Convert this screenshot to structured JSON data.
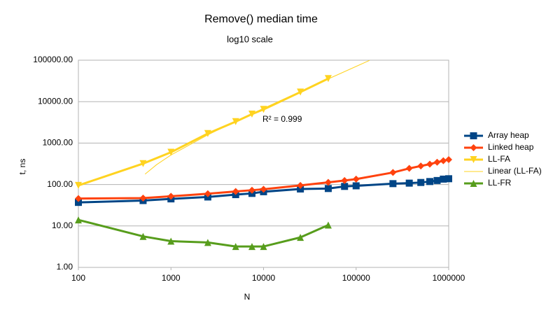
{
  "chart_data": {
    "type": "line",
    "title": "Remove() median time",
    "subtitle": "log10 scale",
    "x_label": "N",
    "y_label": "t, ns",
    "xscale": "log",
    "yscale": "log",
    "grid": true,
    "legend": "right",
    "xlim": [
      100,
      1000000
    ],
    "xticks": [
      100,
      1000,
      10000,
      100000,
      1000000
    ],
    "ylim": [
      1,
      100000
    ],
    "yticks": [
      {
        "value": 1,
        "label": "1.00"
      },
      {
        "value": 10,
        "label": "10.00"
      },
      {
        "value": 100,
        "label": "100.00"
      },
      {
        "value": 1000,
        "label": "1000.00"
      },
      {
        "value": 10000,
        "label": "10000.00"
      },
      {
        "value": 100000,
        "label": "100000.00"
      }
    ],
    "annotation": "R² = 0.999",
    "series": [
      {
        "name": "Array heap",
        "color": "#004586",
        "marker": "square",
        "width": 3,
        "x": [
          100,
          500,
          1000,
          2500,
          5000,
          7500,
          10000,
          25000,
          50000,
          75000,
          100000,
          250000,
          375000,
          500000,
          625000,
          750000,
          875000,
          1000000
        ],
        "values": [
          37,
          41,
          45,
          50,
          57,
          61,
          67,
          78,
          80,
          90,
          93,
          105,
          108,
          112,
          118,
          125,
          135,
          138
        ]
      },
      {
        "name": "Linked heap",
        "color": "#ff420e",
        "marker": "diamond",
        "width": 3,
        "x": [
          100,
          500,
          1000,
          2500,
          5000,
          7500,
          10000,
          25000,
          50000,
          75000,
          100000,
          250000,
          375000,
          500000,
          625000,
          750000,
          875000,
          1000000
        ],
        "values": [
          46,
          47,
          52,
          60,
          68,
          73,
          77,
          95,
          113,
          125,
          135,
          195,
          245,
          280,
          310,
          345,
          375,
          400
        ]
      },
      {
        "name": "LL-FA",
        "color": "#ffd320",
        "marker": "triangle-down",
        "width": 3,
        "x": [
          100,
          500,
          1000,
          2500,
          5000,
          7500,
          10000,
          25000,
          50000
        ],
        "values": [
          95,
          320,
          600,
          1700,
          3300,
          5000,
          6500,
          17000,
          36000
        ]
      },
      {
        "name": "Linear (LL-FA)",
        "color": "#ffd320",
        "marker": "none",
        "width": 1,
        "x": [
          525,
          700,
          1000,
          2500,
          5000,
          10000,
          25000,
          50000,
          100000,
          140000
        ],
        "values": [
          178,
          302,
          515,
          1580,
          3355,
          6905,
          17555,
          35305,
          70805,
          99205
        ]
      },
      {
        "name": "LL-FR",
        "color": "#579d1c",
        "marker": "triangle-up",
        "width": 3,
        "x": [
          100,
          500,
          1000,
          2500,
          5000,
          7500,
          10000,
          25000,
          50000
        ],
        "values": [
          14,
          5.6,
          4.3,
          4.0,
          3.2,
          3.2,
          3.2,
          5.3,
          10.5
        ]
      }
    ]
  }
}
